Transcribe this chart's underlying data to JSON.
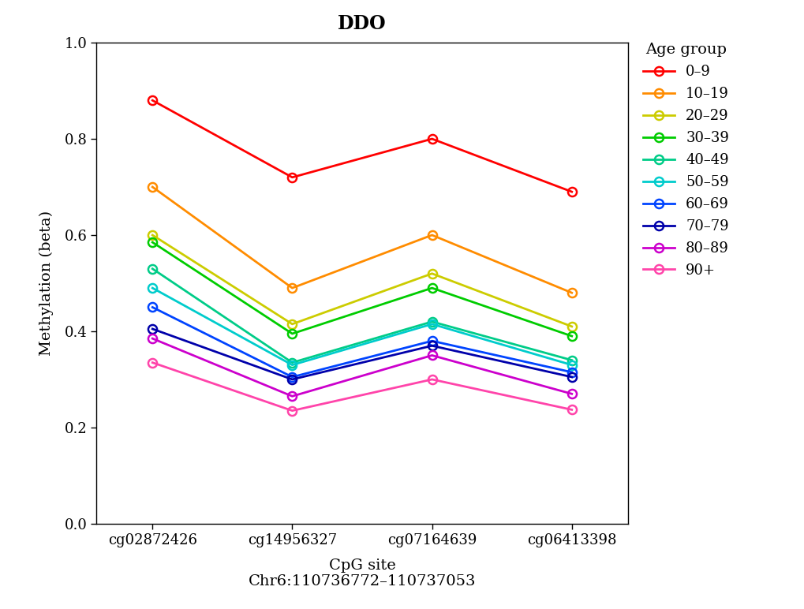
{
  "title": "DDO",
  "xlabel": "CpG site\nChr6:110736772–110737053",
  "ylabel": "Methylation (beta)",
  "cpg_sites": [
    "cg02872426",
    "cg14956327",
    "cg07164639",
    "cg06413398"
  ],
  "ylim": [
    0.0,
    1.0
  ],
  "yticks": [
    0.0,
    0.2,
    0.4,
    0.6,
    0.8,
    1.0
  ],
  "legend_title": "Age group",
  "age_groups": [
    {
      "label": "0–9",
      "color": "#FF0000",
      "values": [
        0.88,
        0.72,
        0.8,
        0.69
      ]
    },
    {
      "label": "10–19",
      "color": "#FF8C00",
      "values": [
        0.7,
        0.49,
        0.6,
        0.48
      ]
    },
    {
      "label": "20–29",
      "color": "#CCCC00",
      "values": [
        0.6,
        0.415,
        0.52,
        0.41
      ]
    },
    {
      "label": "30–39",
      "color": "#00CC00",
      "values": [
        0.585,
        0.395,
        0.49,
        0.39
      ]
    },
    {
      "label": "40–49",
      "color": "#00CC88",
      "values": [
        0.53,
        0.335,
        0.42,
        0.34
      ]
    },
    {
      "label": "50–59",
      "color": "#00CCCC",
      "values": [
        0.49,
        0.33,
        0.415,
        0.33
      ]
    },
    {
      "label": "60–69",
      "color": "#0044FF",
      "values": [
        0.45,
        0.305,
        0.38,
        0.315
      ]
    },
    {
      "label": "70–79",
      "color": "#0000AA",
      "values": [
        0.405,
        0.3,
        0.37,
        0.305
      ]
    },
    {
      "label": "80–89",
      "color": "#CC00CC",
      "values": [
        0.385,
        0.265,
        0.35,
        0.27
      ]
    },
    {
      "label": "90+",
      "color": "#FF44AA",
      "values": [
        0.335,
        0.235,
        0.3,
        0.237
      ]
    }
  ],
  "background_color": "#FFFFFF",
  "title_fontsize": 17,
  "axis_label_fontsize": 14,
  "tick_fontsize": 13,
  "legend_fontsize": 13,
  "legend_title_fontsize": 14,
  "marker": "o",
  "markersize": 8,
  "linewidth": 2.0
}
